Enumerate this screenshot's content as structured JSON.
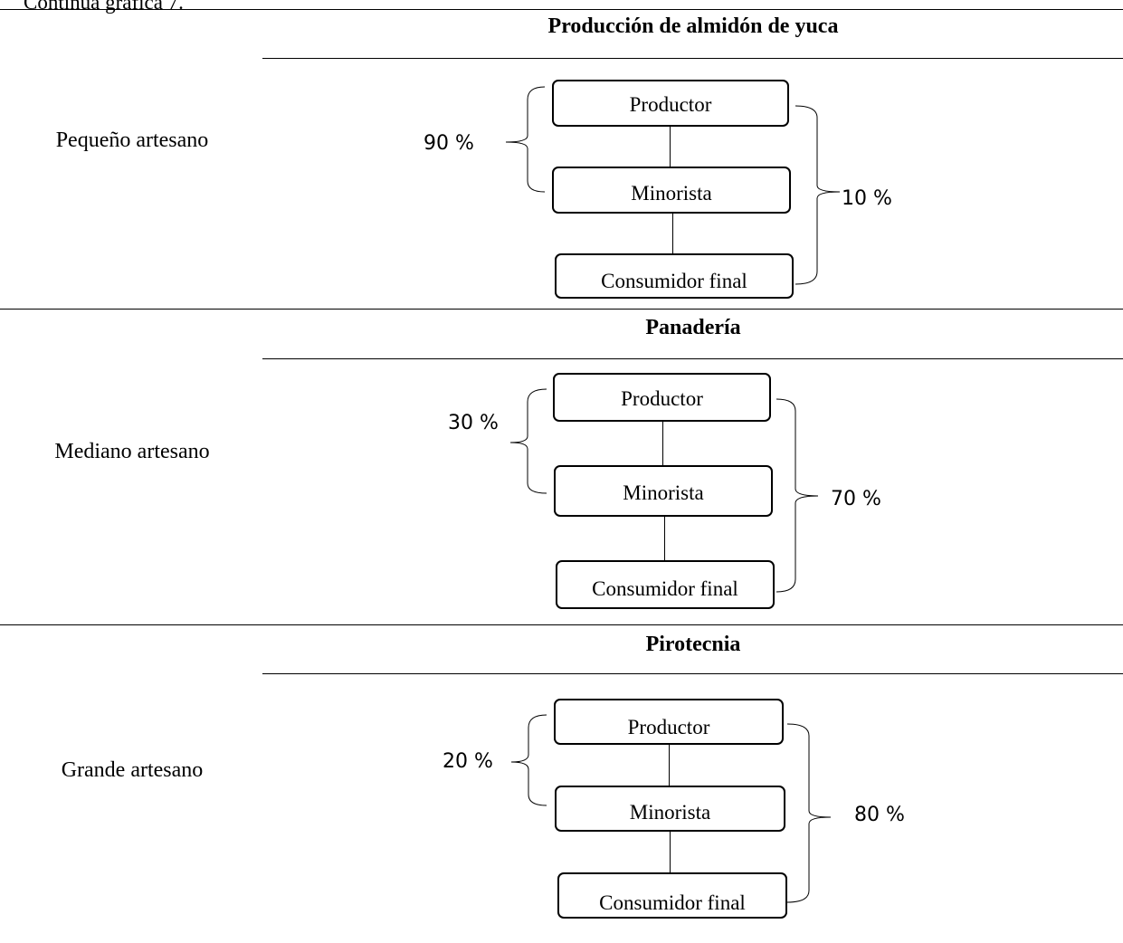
{
  "caption": "Continúa gráfica 7.",
  "sections": [
    {
      "category": "Pequeño artesano",
      "title": "Producción de almidón de yuca",
      "boxes": [
        "Productor",
        "Minorista",
        "Consumidor final"
      ],
      "left_percent": "90 %",
      "right_percent": "10 %"
    },
    {
      "category": "Mediano artesano",
      "title": "Panadería",
      "boxes": [
        "Productor",
        "Minorista",
        "Consumidor final"
      ],
      "left_percent": "30 %",
      "right_percent": "70 %"
    },
    {
      "category": "Grande artesano",
      "title": "Pirotecnia",
      "boxes": [
        "Productor",
        "Minorista",
        "Consumidor final"
      ],
      "left_percent": "20 %",
      "right_percent": "80 %"
    }
  ]
}
